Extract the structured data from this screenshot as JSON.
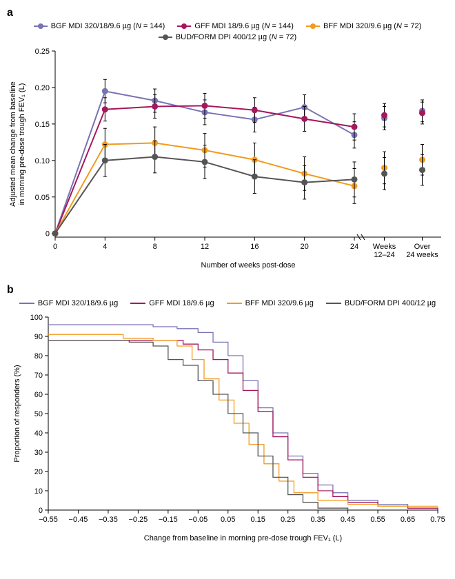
{
  "panel_a": {
    "label": "a",
    "type": "line",
    "ylabel": "Adjusted mean change from baseline\nin morning pre-dose trough FEV₁ (L)",
    "xlabel": "Number of weeks post-dose",
    "ylim": [
      -0.005,
      0.25
    ],
    "yticks": [
      0,
      0.05,
      0.1,
      0.15,
      0.2,
      0.25
    ],
    "xticks_main": [
      0,
      4,
      8,
      12,
      16,
      20,
      24
    ],
    "xticks_summary": [
      "Weeks\n12–24",
      "Over\n24 weeks"
    ],
    "background_color": "#ffffff",
    "axis_color": "#000000",
    "error_bar_color": "#000000",
    "error_cap_width": 5,
    "marker_radius": 4.5,
    "line_width": 2,
    "label_fontsize": 11,
    "series": [
      {
        "name": "BGF MDI 320/18/9.6 µg (N = 144)",
        "color": "#7873b5",
        "data_weeks": [
          0,
          4,
          8,
          12,
          16,
          20,
          24
        ],
        "data_values": [
          0,
          0.195,
          0.182,
          0.166,
          0.156,
          0.173,
          0.135
        ],
        "data_err": [
          0,
          0.016,
          0.016,
          0.017,
          0.017,
          0.017,
          0.018
        ],
        "summary_values": [
          0.158,
          0.168
        ],
        "summary_err": [
          0.016,
          0.015
        ]
      },
      {
        "name": "GFF MDI 18/9.6 µg (N = 144)",
        "color": "#a5185c",
        "data_weeks": [
          0,
          4,
          8,
          12,
          16,
          20,
          24
        ],
        "data_values": [
          0,
          0.17,
          0.174,
          0.175,
          0.169,
          0.157,
          0.146
        ],
        "data_err": [
          0,
          0.016,
          0.016,
          0.017,
          0.017,
          0.017,
          0.018
        ],
        "summary_values": [
          0.162,
          0.165
        ],
        "summary_err": [
          0.016,
          0.015
        ]
      },
      {
        "name": "BFF MDI 320/9.6 µg (N = 72)",
        "color": "#f39a1e",
        "data_weeks": [
          0,
          4,
          8,
          12,
          16,
          20,
          24
        ],
        "data_values": [
          0,
          0.122,
          0.124,
          0.114,
          0.101,
          0.082,
          0.065
        ],
        "data_err": [
          0,
          0.022,
          0.022,
          0.023,
          0.023,
          0.023,
          0.024
        ],
        "summary_values": [
          0.09,
          0.101
        ],
        "summary_err": [
          0.022,
          0.021
        ]
      },
      {
        "name": "BUD/FORM DPI 400/12 µg (N = 72)",
        "color": "#555555",
        "data_weeks": [
          0,
          4,
          8,
          12,
          16,
          20,
          24
        ],
        "data_values": [
          0,
          0.1,
          0.105,
          0.098,
          0.078,
          0.07,
          0.074
        ],
        "data_err": [
          0,
          0.022,
          0.022,
          0.023,
          0.023,
          0.023,
          0.024
        ],
        "summary_values": [
          0.082,
          0.087
        ],
        "summary_err": [
          0.022,
          0.021
        ]
      }
    ]
  },
  "panel_b": {
    "label": "b",
    "type": "line",
    "ylabel": "Proportion of responders (%)",
    "xlabel": "Change from baseline in morning pre-dose trough FEV₁ (L)",
    "ylim": [
      0,
      100
    ],
    "yticks": [
      0,
      10,
      20,
      30,
      40,
      50,
      60,
      70,
      80,
      90,
      100
    ],
    "xlim": [
      -0.55,
      0.75
    ],
    "xticks": [
      -0.55,
      -0.45,
      -0.35,
      -0.25,
      -0.15,
      -0.05,
      0.05,
      0.15,
      0.25,
      0.35,
      0.45,
      0.55,
      0.65,
      0.75
    ],
    "background_color": "#ffffff",
    "axis_color": "#000000",
    "line_width": 1.3,
    "label_fontsize": 11,
    "series": [
      {
        "name": "BGF MDI 320/18/9.6 µg",
        "color": "#7873b5",
        "x": [
          -0.55,
          -0.35,
          -0.2,
          -0.12,
          -0.05,
          0.0,
          0.05,
          0.1,
          0.15,
          0.2,
          0.25,
          0.3,
          0.35,
          0.4,
          0.45,
          0.55,
          0.65,
          0.75
        ],
        "y": [
          96,
          96,
          95,
          94,
          92,
          87,
          80,
          67,
          53,
          40,
          28,
          19,
          13,
          9,
          5,
          3,
          1,
          0
        ]
      },
      {
        "name": "GFF MDI 18/9.6 µg",
        "color": "#a5185c",
        "x": [
          -0.55,
          -0.45,
          -0.3,
          -0.18,
          -0.1,
          -0.05,
          0.0,
          0.05,
          0.1,
          0.15,
          0.2,
          0.25,
          0.3,
          0.35,
          0.4,
          0.45,
          0.55,
          0.65,
          0.75
        ],
        "y": [
          88,
          88,
          88,
          88,
          86,
          83,
          78,
          71,
          62,
          51,
          38,
          26,
          17,
          10,
          7,
          4,
          2,
          1,
          0
        ]
      },
      {
        "name": "BFF MDI 320/9.6 µg",
        "color": "#f39a1e",
        "x": [
          -0.55,
          -0.45,
          -0.3,
          -0.2,
          -0.12,
          -0.07,
          -0.03,
          0.02,
          0.07,
          0.12,
          0.17,
          0.22,
          0.27,
          0.35,
          0.45,
          0.55,
          0.65,
          0.75
        ],
        "y": [
          91,
          91,
          89,
          88,
          85,
          78,
          68,
          57,
          45,
          34,
          24,
          15,
          9,
          5,
          3,
          2,
          2,
          2
        ]
      },
      {
        "name": "BUD/FORM DPI 400/12 µg",
        "color": "#555555",
        "x": [
          -0.55,
          -0.4,
          -0.28,
          -0.2,
          -0.15,
          -0.1,
          -0.05,
          0.0,
          0.05,
          0.1,
          0.15,
          0.2,
          0.25,
          0.3,
          0.35,
          0.45
        ],
        "y": [
          88,
          88,
          87,
          85,
          78,
          75,
          67,
          60,
          50,
          40,
          28,
          17,
          8,
          4,
          1,
          0
        ]
      }
    ]
  }
}
